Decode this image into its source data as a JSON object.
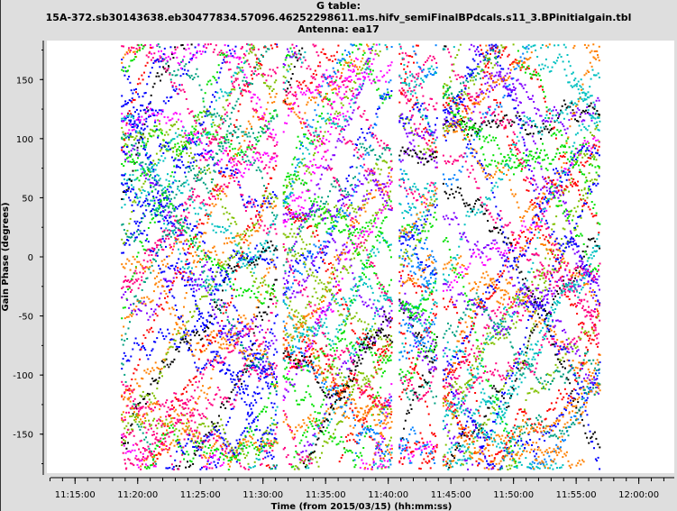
{
  "title_lines": [
    "G table:",
    "15A-372.sb30143638.eb30477834.57096.46252298611.ms.hifv_semiFinalBPdcals.s11_3.BPinitialgain.tbl",
    "Antenna: ea17"
  ],
  "chart_data": {
    "type": "scatter",
    "title": "G table: 15A-372.sb30143638.eb30477834.57096.46252298611.ms.hifv_semiFinalBPdcals.s11_3.BPinitialgain.tbl Antenna: ea17",
    "xlabel": "Time (from 2015/03/15) (hh:mm:ss)",
    "ylabel": "Gain Phase (degrees)",
    "xlim": [
      "11:12:45",
      "12:02:50"
    ],
    "ylim": [
      -183,
      183
    ],
    "x_ticks": [
      "11:15:00",
      "11:20:00",
      "11:25:00",
      "11:30:00",
      "11:35:00",
      "11:40:00",
      "11:45:00",
      "11:50:00",
      "11:55:00",
      "12:00:00"
    ],
    "y_ticks": [
      -150,
      -100,
      -50,
      0,
      50,
      100,
      150
    ],
    "grid": false,
    "legend": "none",
    "scan_segments": [
      {
        "start": "11:18:40",
        "end": "11:31:05"
      },
      {
        "start": "11:31:35",
        "end": "11:40:15"
      },
      {
        "start": "11:40:50",
        "end": "11:43:50"
      },
      {
        "start": "11:44:20",
        "end": "11:56:50"
      }
    ],
    "point_colors": [
      "#000000",
      "#ff0000",
      "#00e000",
      "#0000ff",
      "#ff8000",
      "#00c0c0",
      "#ff00ff",
      "#8000ff",
      "#00a080",
      "#80c000",
      "#ff0080",
      "#0080ff"
    ]
  }
}
